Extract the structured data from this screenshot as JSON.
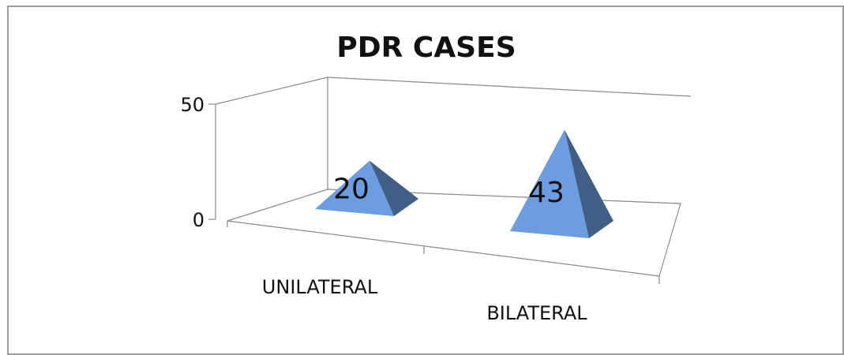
{
  "chart_data": {
    "type": "pyramid",
    "title": "PDR CASES",
    "categories": [
      "UNILATERAL",
      "BILATERAL"
    ],
    "values": [
      20,
      43
    ],
    "color": "#6c9de0",
    "ylim": [
      0,
      50
    ],
    "yticks": [
      0,
      50
    ]
  }
}
